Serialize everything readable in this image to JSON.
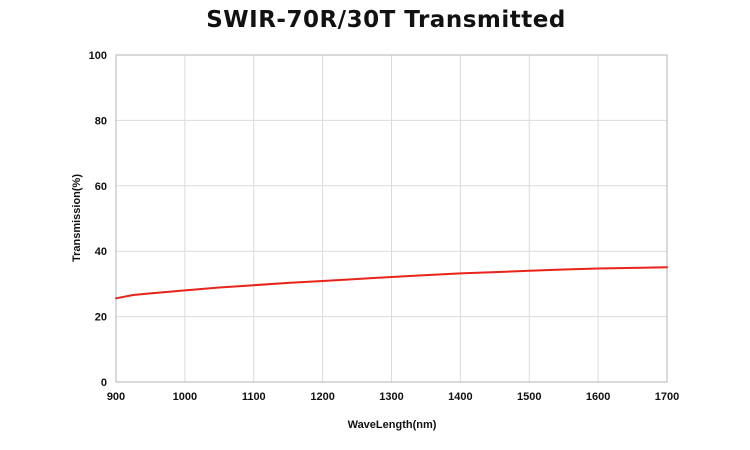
{
  "chart_data": {
    "type": "line",
    "title": "SWIR-70R/30T Transmitted",
    "xlabel": "WaveLength(nm)",
    "ylabel": "Transmission(%)",
    "xlim": [
      900,
      1700
    ],
    "ylim": [
      0,
      100
    ],
    "xticks": [
      900,
      1000,
      1100,
      1200,
      1300,
      1400,
      1500,
      1600,
      1700
    ],
    "yticks": [
      0,
      20,
      40,
      60,
      80,
      100
    ],
    "grid": true,
    "series": [
      {
        "color": "#e8231a",
        "x": [
          900,
          925,
          950,
          1000,
          1050,
          1100,
          1150,
          1200,
          1250,
          1300,
          1350,
          1400,
          1450,
          1500,
          1550,
          1600,
          1650,
          1700
        ],
        "y": [
          25.6,
          26.6,
          27.1,
          28.0,
          28.9,
          29.6,
          30.3,
          30.9,
          31.5,
          32.1,
          32.7,
          33.2,
          33.6,
          34.0,
          34.4,
          34.7,
          34.9,
          35.1
        ]
      }
    ]
  }
}
